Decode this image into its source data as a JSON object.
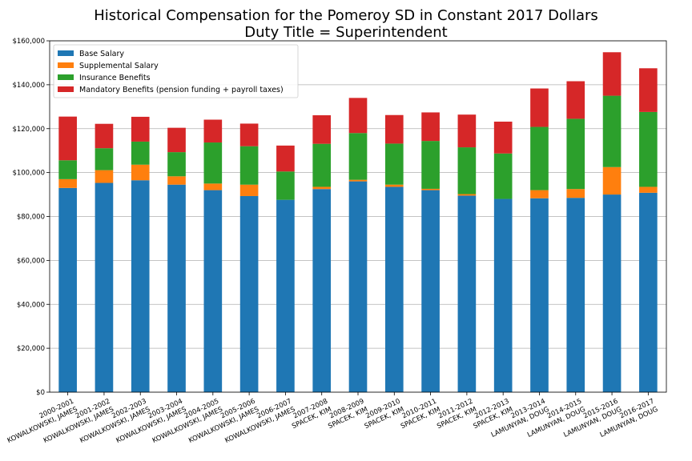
{
  "chart_data": {
    "type": "bar",
    "stacked": true,
    "title": "Historical Compensation for the Pomeroy SD in Constant 2017 Dollars",
    "subtitle": "Duty Title = Superintendent",
    "xlabel": "",
    "ylabel": "",
    "ylim": [
      0,
      160000
    ],
    "yticks": [
      "$0",
      "$20,000",
      "$40,000",
      "$60,000",
      "$80,000",
      "$100,000",
      "$120,000",
      "$140,000",
      "$160,000"
    ],
    "grid": "horizontal",
    "legend_position": "top-left",
    "categories": [
      [
        "2000-2001",
        "KOWALKOWSKI, JAMES"
      ],
      [
        "2001-2002",
        "KOWALKOWSKI, JAMES"
      ],
      [
        "2002-2003",
        "KOWALKOWSKI, JAMES"
      ],
      [
        "2003-2004",
        "KOWALKOWSKI, JAMES"
      ],
      [
        "2004-2005",
        "KOWALKOWSKI, JAMES"
      ],
      [
        "2005-2006",
        "KOWALKOWSKI, JAMES"
      ],
      [
        "2006-2007",
        "KOWALKOWSKI, JAMES"
      ],
      [
        "2007-2008",
        "SPACEK, KIM"
      ],
      [
        "2008-2009",
        "SPACEK, KIM"
      ],
      [
        "2009-2010",
        "SPACEK, KIM"
      ],
      [
        "2010-2011",
        "SPACEK, KIM"
      ],
      [
        "2011-2012",
        "SPACEK, KIM"
      ],
      [
        "2012-2013",
        "SPACEK, KIM"
      ],
      [
        "2013-2014",
        "LAMUNYAN, DOUG"
      ],
      [
        "2014-2015",
        "LAMUNYAN, DOUG"
      ],
      [
        "2015-2016",
        "LAMUNYAN, DOUG"
      ],
      [
        "2016-2017",
        "LAMUNYAN, DOUG"
      ]
    ],
    "series": [
      {
        "name": "Base Salary",
        "color": "#1f77b4",
        "values": [
          93000,
          95300,
          96500,
          94500,
          92000,
          89300,
          87600,
          92500,
          96000,
          93500,
          92000,
          89500,
          88000,
          88300,
          88500,
          90000,
          90800
        ]
      },
      {
        "name": "Supplemental Salary",
        "color": "#ff7f0e",
        "values": [
          4000,
          5800,
          7100,
          3800,
          3000,
          5200,
          0,
          1000,
          700,
          1000,
          600,
          700,
          0,
          3700,
          4000,
          12500,
          2700
        ]
      },
      {
        "name": "Insurance Benefits",
        "color": "#2ca02c",
        "values": [
          8600,
          10000,
          10500,
          11000,
          18700,
          17500,
          12900,
          19600,
          21300,
          18700,
          21800,
          21300,
          20700,
          28800,
          32000,
          32500,
          34100
        ]
      },
      {
        "name": "Mandatory Benefits (pension funding + payroll taxes)",
        "color": "#d62728",
        "values": [
          19900,
          11100,
          11300,
          11100,
          10400,
          10300,
          11800,
          13000,
          16000,
          13000,
          13000,
          14900,
          14500,
          17500,
          17100,
          19800,
          19900
        ]
      }
    ]
  }
}
